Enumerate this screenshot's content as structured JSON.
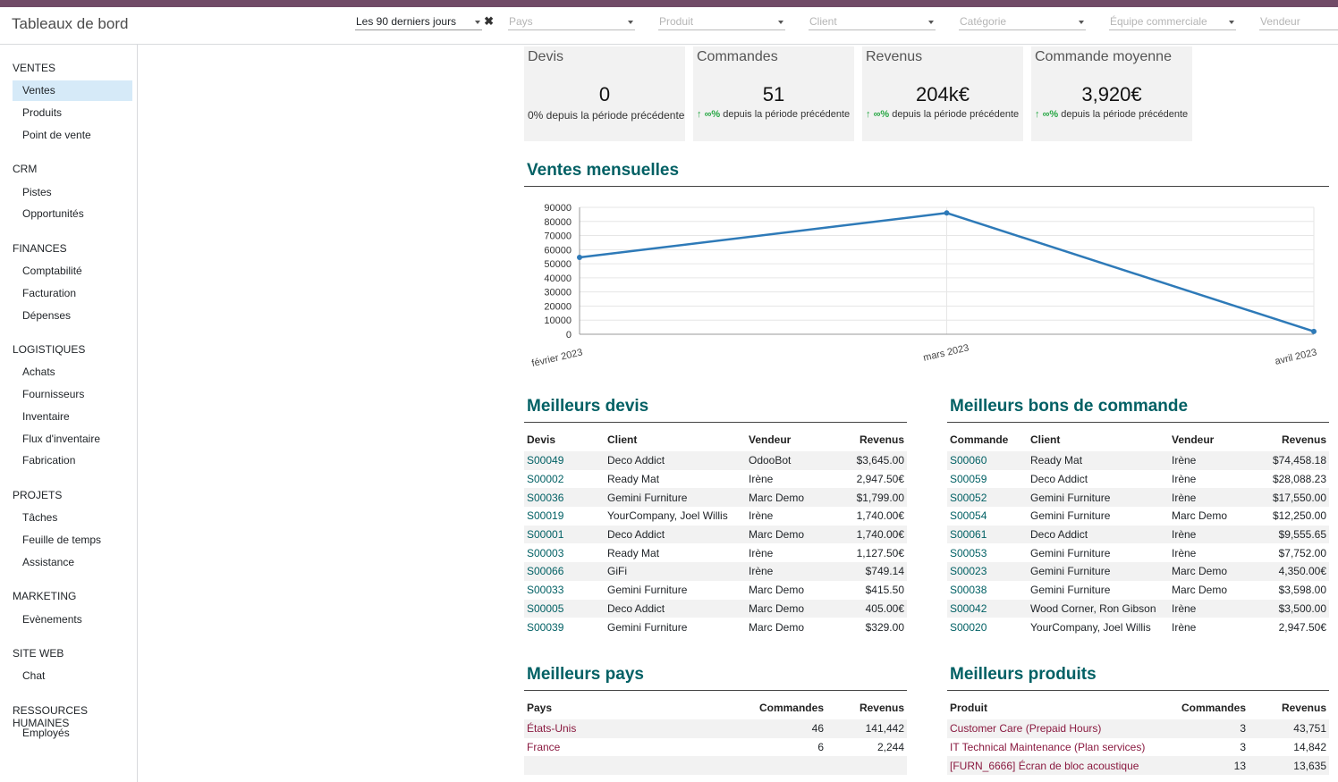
{
  "header": {
    "title": "Tableaux de bord",
    "filters": {
      "period": "Les 90 derniers jours",
      "country": "Pays",
      "product": "Produit",
      "client": "Client",
      "category": "Catégorie",
      "sales_team": "Équipe commerciale",
      "salesperson": "Vendeur"
    }
  },
  "sidebar": {
    "sections": [
      {
        "title": "VENTES",
        "items": [
          "Ventes",
          "Produits",
          "Point de vente"
        ]
      },
      {
        "title": "CRM",
        "items": [
          "Pistes",
          "Opportunités"
        ]
      },
      {
        "title": "FINANCES",
        "items": [
          "Comptabilité",
          "Facturation",
          "Dépenses"
        ]
      },
      {
        "title": "LOGISTIQUES",
        "items": [
          "Achats",
          "Fournisseurs",
          "Inventaire",
          "Flux d'inventaire",
          "Fabrication"
        ]
      },
      {
        "title": "PROJETS",
        "items": [
          "Tâches",
          "Feuille de temps",
          "Assistance"
        ]
      },
      {
        "title": "MARKETING",
        "items": [
          "Evènements"
        ]
      },
      {
        "title": "SITE WEB",
        "items": [
          "Chat"
        ]
      },
      {
        "title": "RESSOURCES HUMAINES",
        "items": [
          "Employés"
        ]
      }
    ],
    "active_item": "Ventes"
  },
  "kpis": [
    {
      "title": "Devis",
      "value": "0",
      "trend": "",
      "subtitle": "0% depuis la période précédente"
    },
    {
      "title": "Commandes",
      "value": "51",
      "trend": "∞%",
      "subtitle": "depuis la période précédente"
    },
    {
      "title": "Revenus",
      "value": "204k€",
      "trend": "∞%",
      "subtitle": "depuis la période précédente"
    },
    {
      "title": "Commande moyenne",
      "value": "3,920€",
      "trend": "∞%",
      "subtitle": "depuis la période précédente"
    }
  ],
  "chart_data": {
    "type": "line",
    "title": "Ventes mensuelles",
    "categories": [
      "février 2023",
      "mars 2023",
      "avril 2023"
    ],
    "values": [
      54500,
      86000,
      2000
    ],
    "ylim": [
      0,
      90000
    ],
    "yticks": [
      0,
      10000,
      20000,
      30000,
      40000,
      50000,
      60000,
      70000,
      80000,
      90000
    ],
    "color": "#2e7ab8",
    "grid": true
  },
  "top_quotes": {
    "title": "Meilleurs devis",
    "columns": [
      "Devis",
      "Client",
      "Vendeur",
      "Revenus"
    ],
    "rows": [
      [
        "S00049",
        "Deco Addict",
        "OdooBot",
        "$3,645.00"
      ],
      [
        "S00002",
        "Ready Mat",
        "Irène",
        "2,947.50€"
      ],
      [
        "S00036",
        "Gemini Furniture",
        "Marc Demo",
        "$1,799.00"
      ],
      [
        "S00019",
        "YourCompany, Joel Willis",
        "Irène",
        "1,740.00€"
      ],
      [
        "S00001",
        "Deco Addict",
        "Marc Demo",
        "1,740.00€"
      ],
      [
        "S00003",
        "Ready Mat",
        "Irène",
        "1,127.50€"
      ],
      [
        "S00066",
        "GiFi",
        "Irène",
        "$749.14"
      ],
      [
        "S00033",
        "Gemini Furniture",
        "Marc Demo",
        "$415.50"
      ],
      [
        "S00005",
        "Deco Addict",
        "Marc Demo",
        "405.00€"
      ],
      [
        "S00039",
        "Gemini Furniture",
        "Marc Demo",
        "$329.00"
      ]
    ]
  },
  "top_orders": {
    "title": "Meilleurs bons de commande",
    "columns": [
      "Commande",
      "Client",
      "Vendeur",
      "Revenus"
    ],
    "rows": [
      [
        "S00060",
        "Ready Mat",
        "Irène",
        "$74,458.18"
      ],
      [
        "S00059",
        "Deco Addict",
        "Irène",
        "$28,088.23"
      ],
      [
        "S00052",
        "Gemini Furniture",
        "Irène",
        "$17,550.00"
      ],
      [
        "S00054",
        "Gemini Furniture",
        "Marc Demo",
        "$12,250.00"
      ],
      [
        "S00061",
        "Deco Addict",
        "Irène",
        "$9,555.65"
      ],
      [
        "S00053",
        "Gemini Furniture",
        "Irène",
        "$7,752.00"
      ],
      [
        "S00023",
        "Gemini Furniture",
        "Marc Demo",
        "4,350.00€"
      ],
      [
        "S00038",
        "Gemini Furniture",
        "Marc Demo",
        "$3,598.00"
      ],
      [
        "S00042",
        "Wood Corner, Ron Gibson",
        "Irène",
        "$3,500.00"
      ],
      [
        "S00020",
        "YourCompany, Joel Willis",
        "Irène",
        "2,947.50€"
      ]
    ]
  },
  "top_countries": {
    "title": "Meilleurs pays",
    "columns": [
      "Pays",
      "Commandes",
      "Revenus"
    ],
    "rows": [
      [
        "États-Unis",
        "46",
        "141,442"
      ],
      [
        "France",
        "6",
        "2,244"
      ]
    ]
  },
  "top_products": {
    "title": "Meilleurs produits",
    "columns": [
      "Produit",
      "Commandes",
      "Revenus"
    ],
    "rows": [
      [
        "Customer Care (Prepaid Hours)",
        "3",
        "43,751"
      ],
      [
        "IT Technical Maintenance (Plan services)",
        "3",
        "14,842"
      ],
      [
        "[FURN_6666] Écran de bloc acoustique",
        "13",
        "13,635"
      ]
    ]
  }
}
